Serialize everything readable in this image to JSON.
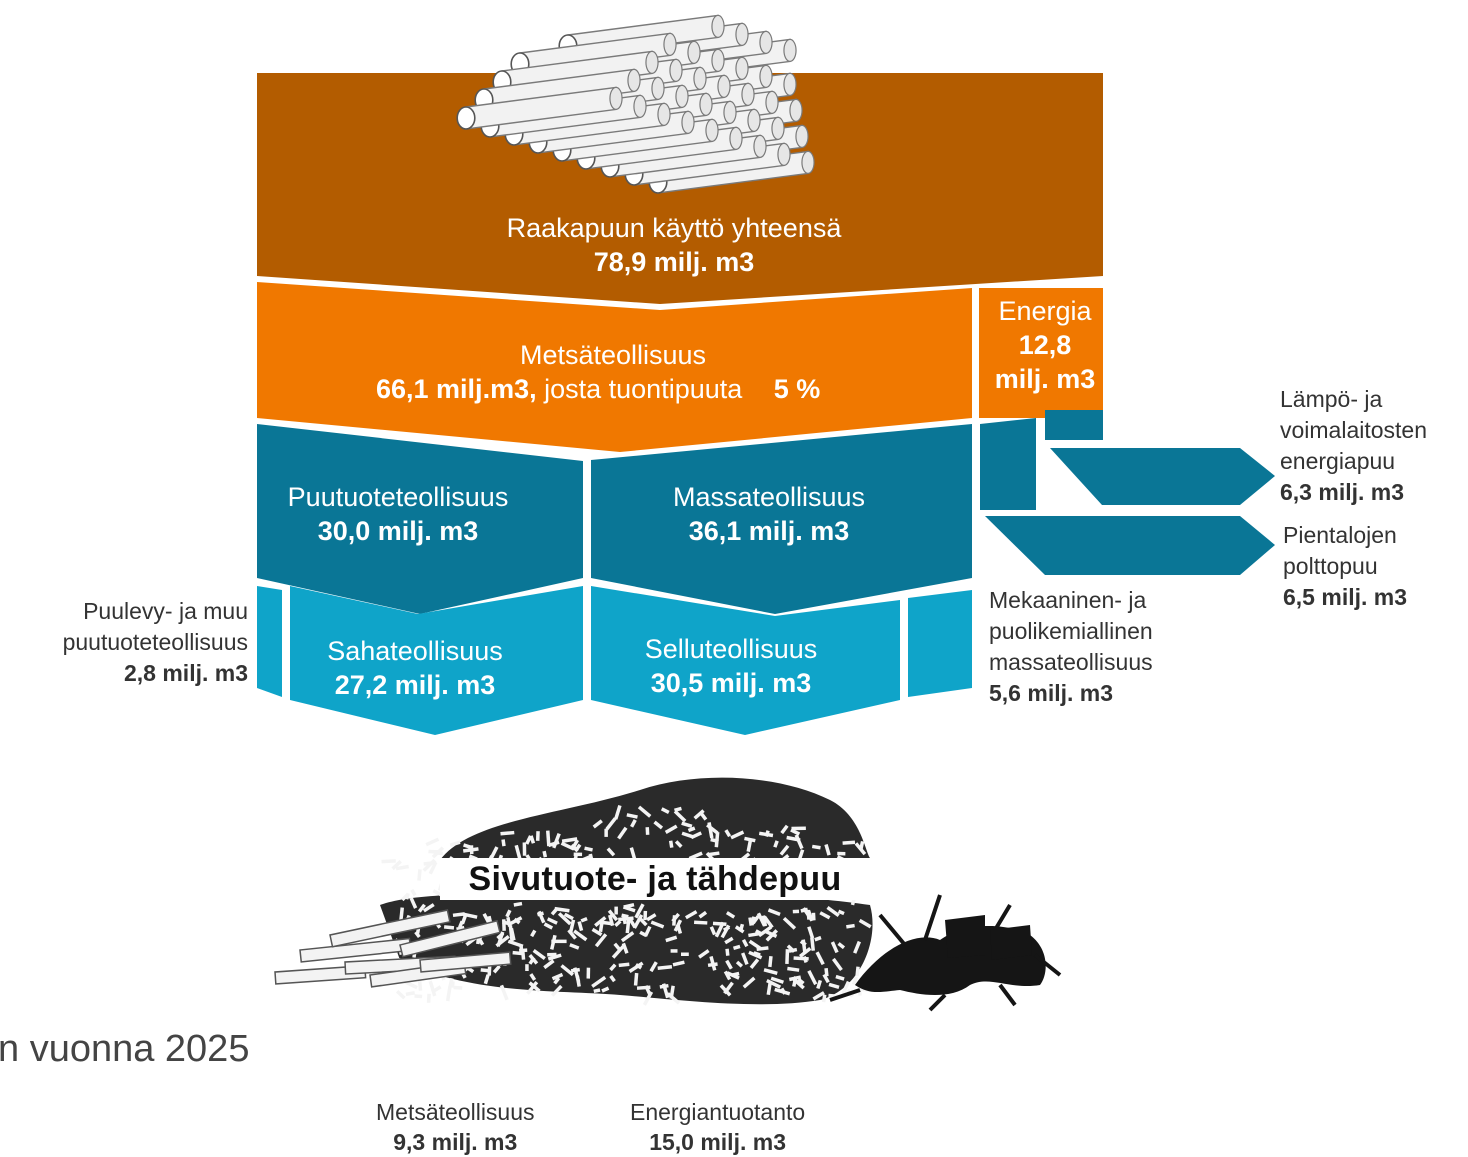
{
  "colors": {
    "raw": "#b35c00",
    "forest_industry": "#f07800",
    "mid_teal": "#0a7696",
    "light_teal": "#0fa4c9",
    "energy_teal": "#0a7696"
  },
  "icons": {
    "logs": "log-pile-icon",
    "chips": "wood-chip-pile-icon",
    "stumps": "tree-stump-icon",
    "boards": "sawn-board-icon"
  },
  "raw": {
    "title": "Raakapuun käyttö yhteensä",
    "value": "78,9 milj. m3"
  },
  "forest": {
    "title": "Metsäteollisuus",
    "value": "66,1 milj.m3,",
    "suffix": "josta tuontipuuta",
    "share": "5 %"
  },
  "energy": {
    "title": "Energia",
    "value_num": "12,8",
    "value_unit": "milj. m3"
  },
  "wood_products": {
    "title": "Puutuoteteollisuus",
    "value": "30,0 milj. m3"
  },
  "pulp": {
    "title": "Massateollisuus",
    "value": "36,1 milj. m3"
  },
  "sawmill": {
    "title": "Sahateollisuus",
    "value": "27,2 milj. m3"
  },
  "pulpmill": {
    "title": "Selluteollisuus",
    "value": "30,5 milj. m3"
  },
  "panel": {
    "line1": "Puulevy- ja muu",
    "line2": "puutuoteteollisuus",
    "value": "2,8 milj. m3"
  },
  "mechanical": {
    "line1": "Mekaaninen- ja",
    "line2": "puolikemiallinen",
    "line3": "massateollisuus",
    "value": "5,6 milj. m3"
  },
  "heat_plants": {
    "line1": "Lämpö- ja",
    "line2": "voimalaitosten",
    "line3": "energiapuu",
    "value": "6,3 milj. m3"
  },
  "small_houses": {
    "line1": "Pientalojen",
    "line2": "polttopuu",
    "value": "6,5 milj. m3"
  },
  "byproduct": {
    "title": "Sivutuote- ja tähdepuu"
  },
  "caption": "n vuonna 2025",
  "footer": {
    "forest_label": "Metsäteollisuus",
    "forest_value": "9,3 milj. m3",
    "energy_label": "Energiantuotanto",
    "energy_value": "15,0 milj. m3"
  }
}
